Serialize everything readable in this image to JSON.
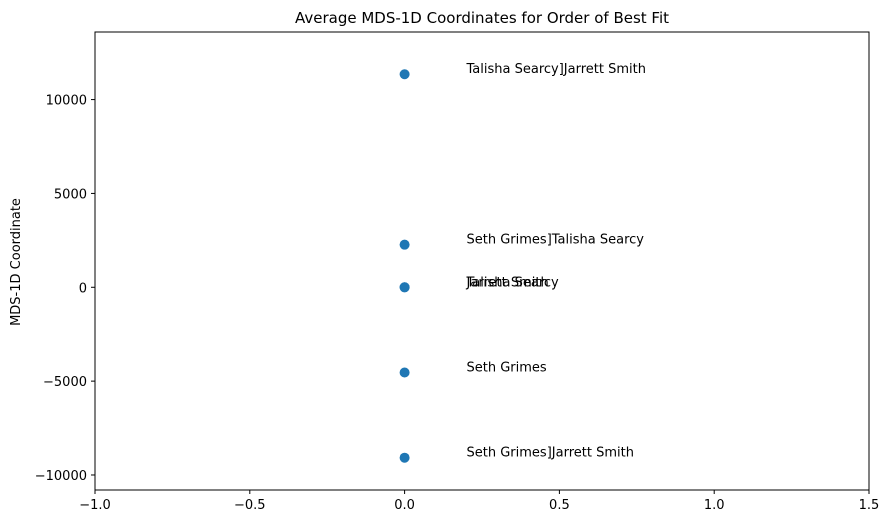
{
  "chart_data": {
    "type": "scatter",
    "title": "Average MDS-1D Coordinates for Order of Best Fit",
    "xlabel": "",
    "ylabel": "MDS-1D Coordinate",
    "xlim": [
      -1.0,
      1.5
    ],
    "ylim": [
      -10800,
      13600
    ],
    "grid": false,
    "x_ticks": [
      -1.0,
      -0.5,
      0.0,
      0.5,
      1.0,
      1.5
    ],
    "x_tick_labels": [
      "−1.0",
      "−0.5",
      "0.0",
      "0.5",
      "1.0",
      "1.5"
    ],
    "y_ticks": [
      -10000,
      -5000,
      0,
      5000,
      10000
    ],
    "y_tick_labels": [
      "−10000",
      "−5000",
      "0",
      "5000",
      "10000"
    ],
    "marker_color": "#1f77b4",
    "points": [
      {
        "x": 0,
        "y": 11350,
        "label": "Talisha Searcy]Jarrett Smith"
      },
      {
        "x": 0,
        "y": 2270,
        "label": "Seth Grimes]Talisha Searcy"
      },
      {
        "x": 0,
        "y": 0,
        "label": "Jarrett Smith"
      },
      {
        "x": 0,
        "y": 0,
        "label": "Talisha Searcy"
      },
      {
        "x": 0,
        "y": -4540,
        "label": "Seth Grimes"
      },
      {
        "x": 0,
        "y": -9080,
        "label": "Seth Grimes]Jarrett Smith"
      }
    ],
    "label_offset_x": 0.2
  }
}
